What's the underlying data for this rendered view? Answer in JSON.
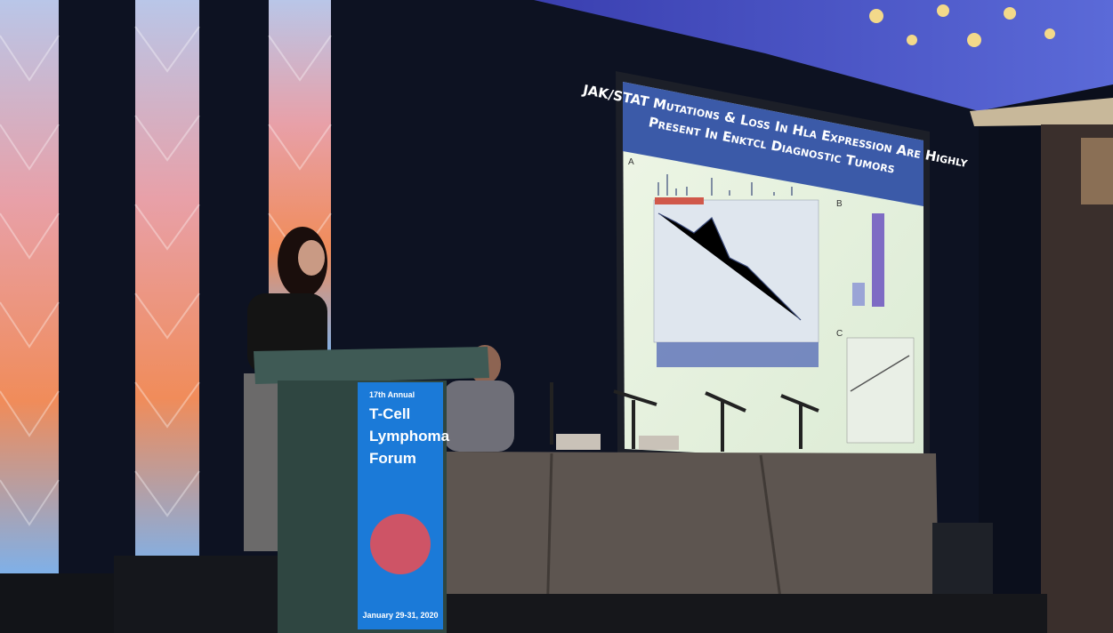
{
  "slide": {
    "title_line1": "JAK/STAT Mutations & Loss In Hla Expression Are Highly",
    "title_line2": "Present In Enktcl Diagnostic Tumors",
    "panels": [
      "A",
      "B",
      "C"
    ]
  },
  "podium_sign": {
    "edition": "17th Annual",
    "name_lines": [
      "T-Cell",
      "Lymphoma",
      "Forum"
    ],
    "dates": "January 29-31, 2020"
  }
}
